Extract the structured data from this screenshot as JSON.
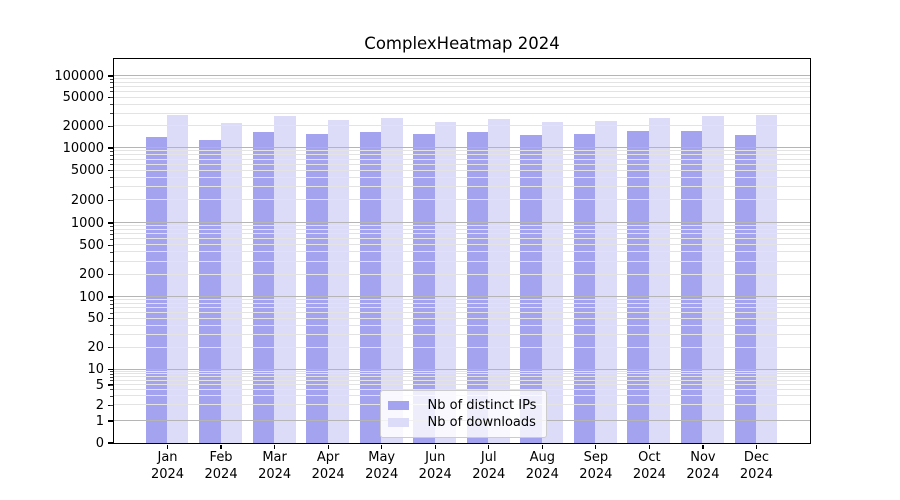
{
  "chart_data": {
    "type": "bar",
    "title": "ComplexHeatmap 2024",
    "x_ticks": [
      [
        "Jan",
        "2024"
      ],
      [
        "Feb",
        "2024"
      ],
      [
        "Mar",
        "2024"
      ],
      [
        "Apr",
        "2024"
      ],
      [
        "May",
        "2024"
      ],
      [
        "Jun",
        "2024"
      ],
      [
        "Jul",
        "2024"
      ],
      [
        "Aug",
        "2024"
      ],
      [
        "Sep",
        "2024"
      ],
      [
        "Oct",
        "2024"
      ],
      [
        "Nov",
        "2024"
      ],
      [
        "Dec",
        "2024"
      ]
    ],
    "series": [
      {
        "name": "Nb of distinct IPs",
        "color": "#a3a3ef",
        "values": [
          13800,
          12900,
          16400,
          15300,
          16200,
          15300,
          16400,
          14700,
          15300,
          17000,
          16700,
          14900
        ]
      },
      {
        "name": "Nb of downloads",
        "color": "#dcdcf9",
        "values": [
          28700,
          21700,
          27500,
          24000,
          25800,
          22400,
          24800,
          22800,
          23300,
          26000,
          27000,
          28400
        ]
      }
    ],
    "y_axis": {
      "scale": "symlog",
      "tick_values": [
        0,
        1,
        2,
        5,
        10,
        20,
        50,
        100,
        200,
        500,
        1000,
        2000,
        5000,
        10000,
        20000,
        50000,
        100000
      ],
      "top_value": 170000
    },
    "grid": {
      "enabled": true,
      "major_color": "#b5b5b5",
      "minor_color": "#e3e3e3"
    },
    "legend": {
      "position": "lower center"
    },
    "ylim": [
      0,
      170000
    ],
    "xlabel": "",
    "ylabel": ""
  }
}
